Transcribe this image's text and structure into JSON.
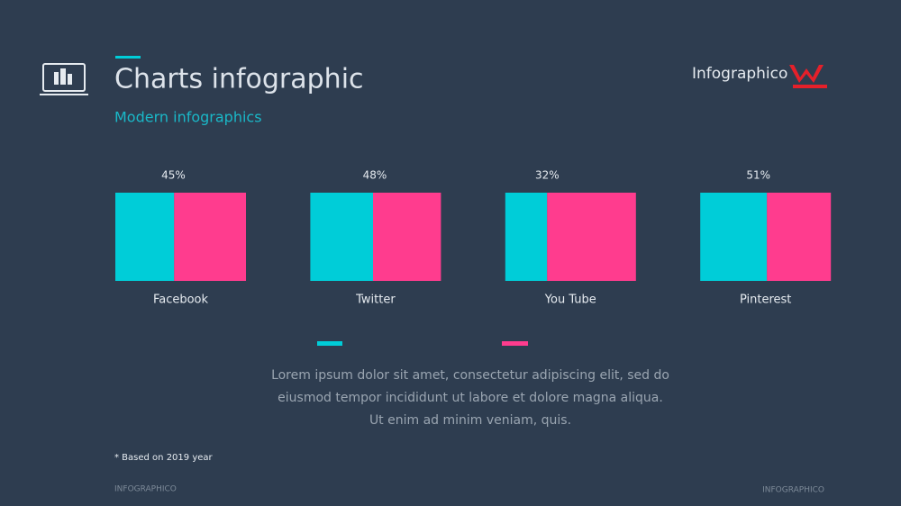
{
  "header": {
    "title": "Charts infographic",
    "subtitle": "Modern infographics",
    "logo": "Infographico"
  },
  "chart_data": {
    "type": "stacked-bar",
    "orientation": "horizontal",
    "categories": [
      "Facebook",
      "Twitter",
      "You Tube",
      "Pinterest"
    ],
    "xlim": [
      0,
      100
    ],
    "series": [
      {
        "color": "#00cdd8",
        "values": [
          45,
          48,
          32,
          51
        ],
        "value_labels": [
          "45%",
          "48%",
          "32%",
          "51%"
        ]
      },
      {
        "color": "#ff3c8e",
        "values": [
          55,
          52,
          68,
          49
        ]
      }
    ]
  },
  "body": "Lorem ipsum dolor sit amet, consectetur adipiscing elit, sed do eiusmod tempor incididunt ut labore et dolore magna aliqua. Ut enim ad minim veniam, quis.",
  "footnote": "* Based  on 2019 year",
  "footer": {
    "left": "INFOGRAPHICO",
    "right": "INFOGRAPHICO"
  }
}
